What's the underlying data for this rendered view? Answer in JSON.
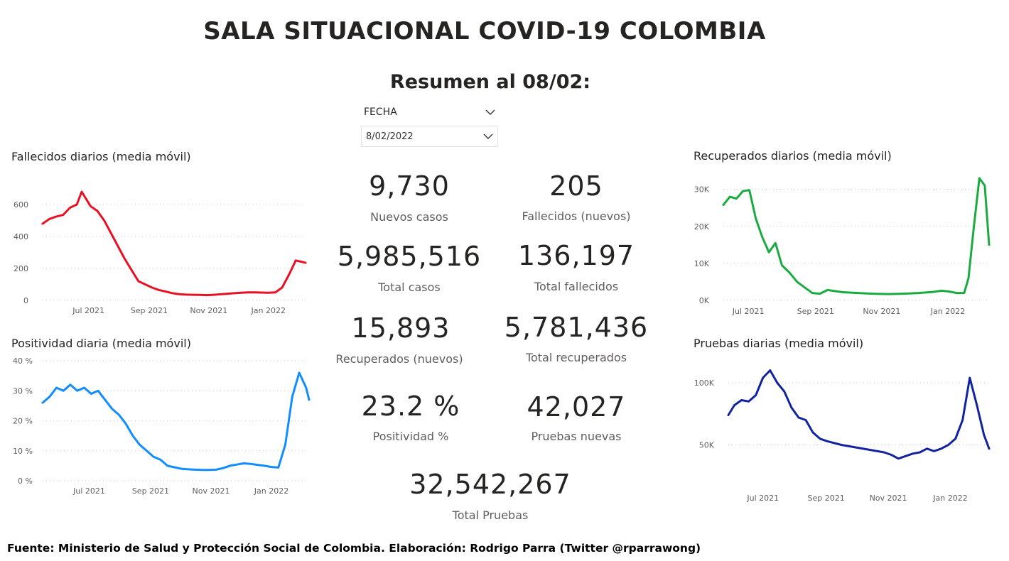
{
  "header": {
    "title": "SALA SITUACIONAL COVID-19 COLOMBIA",
    "summary": "Resumen al 08/02:"
  },
  "slicer": {
    "label": "FECHA",
    "value": "8/02/2022"
  },
  "kpis": {
    "nuevos_casos": {
      "value": "9,730",
      "label": "Nuevos casos"
    },
    "fallecidos_nuevos": {
      "value": "205",
      "label": "Fallecidos (nuevos)"
    },
    "total_casos": {
      "value": "5,985,516",
      "label": "Total casos"
    },
    "total_fallecidos": {
      "value": "136,197",
      "label": "Total fallecidos"
    },
    "recuperados_nuevos": {
      "value": "15,893",
      "label": "Recuperados (nuevos)"
    },
    "total_recuperados": {
      "value": "5,781,436",
      "label": "Total recuperados"
    },
    "positividad": {
      "value": "23.2 %",
      "label": "Positividad %"
    },
    "pruebas_nuevas": {
      "value": "42,027",
      "label": "Pruebas nuevas"
    },
    "total_pruebas": {
      "value": "32,542,267",
      "label": "Total Pruebas"
    }
  },
  "footer": "Fuente: Ministerio de Salud y Protección Social de Colombia. Elaboración: Rodrigo Parra (Twitter @rparrawong)",
  "chart_data": [
    {
      "id": "fallecidos",
      "type": "line",
      "title": "Fallecidos diarios (media móvil)",
      "color": "#e81123",
      "x_range": [
        "2021-05-15",
        "2022-02-08"
      ],
      "x_ticks": [
        {
          "date": "2021-07-01",
          "label": "Jul 2021"
        },
        {
          "date": "2021-09-01",
          "label": "Sep 2021"
        },
        {
          "date": "2021-11-01",
          "label": "Nov 2021"
        },
        {
          "date": "2022-01-01",
          "label": "Jan 2022"
        }
      ],
      "ylim": [
        0,
        680
      ],
      "y_ticks": [
        {
          "v": 0,
          "label": "0"
        },
        {
          "v": 200,
          "label": "200"
        },
        {
          "v": 400,
          "label": "400"
        },
        {
          "v": 600,
          "label": "600"
        }
      ],
      "x": [
        "2021-05-15",
        "2021-05-22",
        "2021-05-29",
        "2021-06-05",
        "2021-06-12",
        "2021-06-19",
        "2021-06-24",
        "2021-07-03",
        "2021-07-10",
        "2021-07-17",
        "2021-07-24",
        "2021-07-31",
        "2021-08-07",
        "2021-08-14",
        "2021-08-21",
        "2021-08-28",
        "2021-09-04",
        "2021-09-11",
        "2021-09-18",
        "2021-09-25",
        "2021-10-02",
        "2021-10-09",
        "2021-10-16",
        "2021-10-23",
        "2021-10-30",
        "2021-11-06",
        "2021-11-13",
        "2021-11-20",
        "2021-11-27",
        "2021-12-04",
        "2021-12-11",
        "2021-12-18",
        "2021-12-25",
        "2022-01-01",
        "2022-01-08",
        "2022-01-15",
        "2022-01-22",
        "2022-01-29",
        "2022-02-05",
        "2022-02-08"
      ],
      "y": [
        480,
        510,
        525,
        535,
        580,
        600,
        680,
        590,
        560,
        500,
        420,
        340,
        260,
        190,
        120,
        100,
        80,
        65,
        55,
        45,
        38,
        36,
        35,
        34,
        33,
        35,
        38,
        42,
        45,
        48,
        50,
        50,
        49,
        48,
        50,
        80,
        160,
        250,
        240,
        235
      ]
    },
    {
      "id": "positividad",
      "type": "line",
      "title": "Positividad diaria (media móvil)",
      "color": "#118dff",
      "x_range": [
        "2021-05-15",
        "2022-02-08"
      ],
      "x_ticks": [
        {
          "date": "2021-07-01",
          "label": "Jul 2021"
        },
        {
          "date": "2021-09-01",
          "label": "Sep 2021"
        },
        {
          "date": "2021-11-01",
          "label": "Nov 2021"
        },
        {
          "date": "2022-01-01",
          "label": "Jan 2022"
        }
      ],
      "ylim": [
        0,
        40
      ],
      "y_ticks": [
        {
          "v": 0,
          "label": "0 %"
        },
        {
          "v": 10,
          "label": "10 %"
        },
        {
          "v": 20,
          "label": "20 %"
        },
        {
          "v": 30,
          "label": "30 %"
        },
        {
          "v": 40,
          "label": "40 %"
        }
      ],
      "x": [
        "2021-05-15",
        "2021-05-22",
        "2021-05-29",
        "2021-06-05",
        "2021-06-12",
        "2021-06-19",
        "2021-06-26",
        "2021-07-03",
        "2021-07-10",
        "2021-07-17",
        "2021-07-24",
        "2021-07-31",
        "2021-08-07",
        "2021-08-14",
        "2021-08-21",
        "2021-08-28",
        "2021-09-04",
        "2021-09-11",
        "2021-09-18",
        "2021-09-25",
        "2021-10-02",
        "2021-10-09",
        "2021-10-16",
        "2021-10-23",
        "2021-10-30",
        "2021-11-06",
        "2021-11-13",
        "2021-11-20",
        "2021-11-27",
        "2021-12-04",
        "2021-12-11",
        "2021-12-18",
        "2021-12-25",
        "2022-01-01",
        "2022-01-08",
        "2022-01-15",
        "2022-01-22",
        "2022-01-29",
        "2022-02-05",
        "2022-02-08"
      ],
      "y": [
        26,
        28,
        31,
        30,
        32,
        30,
        31,
        29,
        30,
        27,
        24,
        22,
        19,
        15,
        12,
        10,
        8,
        7,
        5,
        4.5,
        4,
        3.8,
        3.7,
        3.6,
        3.6,
        3.7,
        4.2,
        5,
        5.4,
        5.8,
        5.6,
        5.3,
        5,
        4.6,
        4.4,
        12,
        28,
        36,
        31,
        27
      ]
    },
    {
      "id": "recuperados",
      "type": "line",
      "title": "Recuperados diarios (media móvil)",
      "color": "#1aab40",
      "x_range": [
        "2021-06-08",
        "2022-02-08"
      ],
      "x_ticks": [
        {
          "date": "2021-07-01",
          "label": "Jul 2021"
        },
        {
          "date": "2021-09-01",
          "label": "Sep 2021"
        },
        {
          "date": "2021-11-01",
          "label": "Nov 2021"
        },
        {
          "date": "2022-01-01",
          "label": "Jan 2022"
        }
      ],
      "ylim": [
        0,
        33000
      ],
      "y_ticks": [
        {
          "v": 0,
          "label": "0K"
        },
        {
          "v": 10000,
          "label": "10K"
        },
        {
          "v": 20000,
          "label": "20K"
        },
        {
          "v": 30000,
          "label": "30K"
        }
      ],
      "x": [
        "2021-06-08",
        "2021-06-14",
        "2021-06-20",
        "2021-06-26",
        "2021-07-02",
        "2021-07-08",
        "2021-07-14",
        "2021-07-20",
        "2021-07-26",
        "2021-08-01",
        "2021-08-08",
        "2021-08-15",
        "2021-08-22",
        "2021-08-29",
        "2021-09-05",
        "2021-09-12",
        "2021-09-26",
        "2021-10-10",
        "2021-10-24",
        "2021-11-07",
        "2021-11-21",
        "2021-12-05",
        "2021-12-19",
        "2021-12-26",
        "2022-01-02",
        "2022-01-09",
        "2022-01-16",
        "2022-01-20",
        "2022-01-25",
        "2022-01-30",
        "2022-02-04",
        "2022-02-08"
      ],
      "y": [
        25800,
        28000,
        27500,
        29500,
        29800,
        22000,
        17000,
        13000,
        15500,
        9500,
        7500,
        5000,
        3500,
        2000,
        1800,
        2800,
        2200,
        2000,
        1800,
        1700,
        1800,
        2000,
        2300,
        2600,
        2400,
        2000,
        2000,
        6000,
        20000,
        33000,
        31000,
        15000
      ]
    },
    {
      "id": "pruebas",
      "type": "line",
      "title": "Pruebas diarias (media móvil)",
      "color": "#12239e",
      "x_range": [
        "2021-05-28",
        "2022-02-08"
      ],
      "x_ticks": [
        {
          "date": "2021-07-01",
          "label": "Jul 2021"
        },
        {
          "date": "2021-09-01",
          "label": "Sep 2021"
        },
        {
          "date": "2021-11-01",
          "label": "Nov 2021"
        },
        {
          "date": "2022-01-01",
          "label": "Jan 2022"
        }
      ],
      "ylim": [
        28000,
        112000
      ],
      "y_ticks": [
        {
          "v": 50000,
          "label": "50K"
        },
        {
          "v": 100000,
          "label": "100K"
        }
      ],
      "x": [
        "2021-05-28",
        "2021-06-03",
        "2021-06-10",
        "2021-06-17",
        "2021-06-24",
        "2021-07-01",
        "2021-07-08",
        "2021-07-15",
        "2021-07-22",
        "2021-07-29",
        "2021-08-05",
        "2021-08-12",
        "2021-08-19",
        "2021-08-26",
        "2021-09-02",
        "2021-09-16",
        "2021-09-30",
        "2021-10-14",
        "2021-10-28",
        "2021-11-04",
        "2021-11-11",
        "2021-11-18",
        "2021-11-25",
        "2021-12-02",
        "2021-12-09",
        "2021-12-16",
        "2021-12-23",
        "2021-12-30",
        "2022-01-06",
        "2022-01-13",
        "2022-01-20",
        "2022-01-27",
        "2022-02-03",
        "2022-02-08"
      ],
      "y": [
        74000,
        82000,
        86000,
        85000,
        90000,
        104000,
        110000,
        100000,
        93000,
        80000,
        72000,
        70000,
        60000,
        55000,
        53000,
        50000,
        48000,
        46000,
        44000,
        42000,
        39000,
        41000,
        43000,
        44000,
        47000,
        45000,
        47000,
        50000,
        55000,
        70000,
        104000,
        82000,
        58000,
        47000
      ]
    }
  ]
}
